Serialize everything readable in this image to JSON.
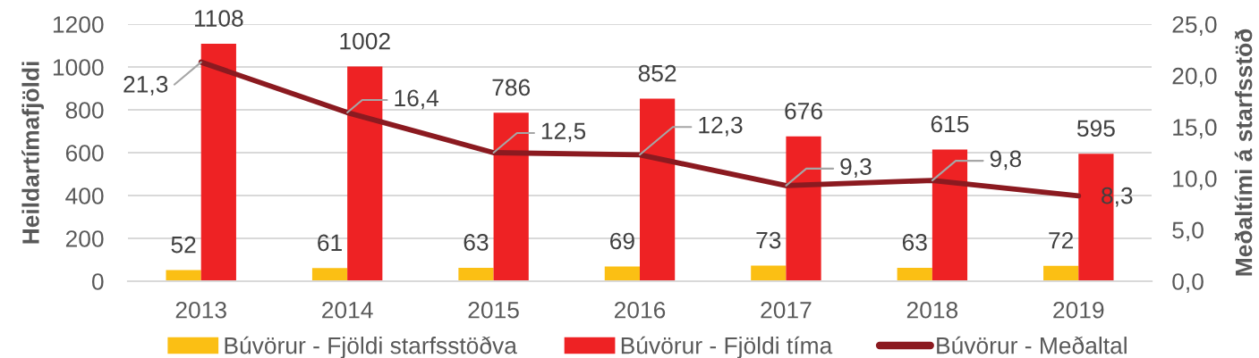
{
  "chart_data": {
    "type": "bar",
    "categories": [
      "2013",
      "2014",
      "2015",
      "2016",
      "2017",
      "2018",
      "2019"
    ],
    "series": [
      {
        "name": "Búvörur - Fjöldi starfsstöðva",
        "color": "#fbbf14",
        "values": [
          52,
          61,
          63,
          69,
          73,
          63,
          72
        ],
        "value_labels": [
          "52",
          "61",
          "63",
          "69",
          "73",
          "63",
          "72"
        ]
      },
      {
        "name": "Búvörur - Fjöldi tíma",
        "color": "#ee2224",
        "values": [
          1108,
          1002,
          786,
          852,
          676,
          615,
          595
        ],
        "value_labels": [
          "1108",
          "1002",
          "786",
          "852",
          "676",
          "615",
          "595"
        ]
      },
      {
        "name": "Búvörur - Meðaltal",
        "type": "line",
        "axis": "y2",
        "color": "#8b1a20",
        "values": [
          21.3,
          16.4,
          12.5,
          12.3,
          9.3,
          9.8,
          8.3
        ],
        "value_labels": [
          "21,3",
          "16,4",
          "12,5",
          "12,3",
          "9,3",
          "9,8",
          "8,3"
        ]
      }
    ],
    "ylabel": "Heildartímafjöldi",
    "y2label": "Meðaltími á starfsstöð",
    "ylim": [
      0,
      1200
    ],
    "yticks": [
      0,
      200,
      400,
      600,
      800,
      1000,
      1200
    ],
    "y2lim": [
      0,
      25
    ],
    "y2ticks": [
      {
        "value": 0,
        "label": "0,0"
      },
      {
        "value": 5,
        "label": "5,0"
      },
      {
        "value": 10,
        "label": "10,0"
      },
      {
        "value": 15,
        "label": "15,0"
      },
      {
        "value": 20,
        "label": "20,0"
      },
      {
        "value": 25,
        "label": "25,0"
      }
    ],
    "grid": "y",
    "legend": "bottom",
    "line_style": "solid"
  }
}
